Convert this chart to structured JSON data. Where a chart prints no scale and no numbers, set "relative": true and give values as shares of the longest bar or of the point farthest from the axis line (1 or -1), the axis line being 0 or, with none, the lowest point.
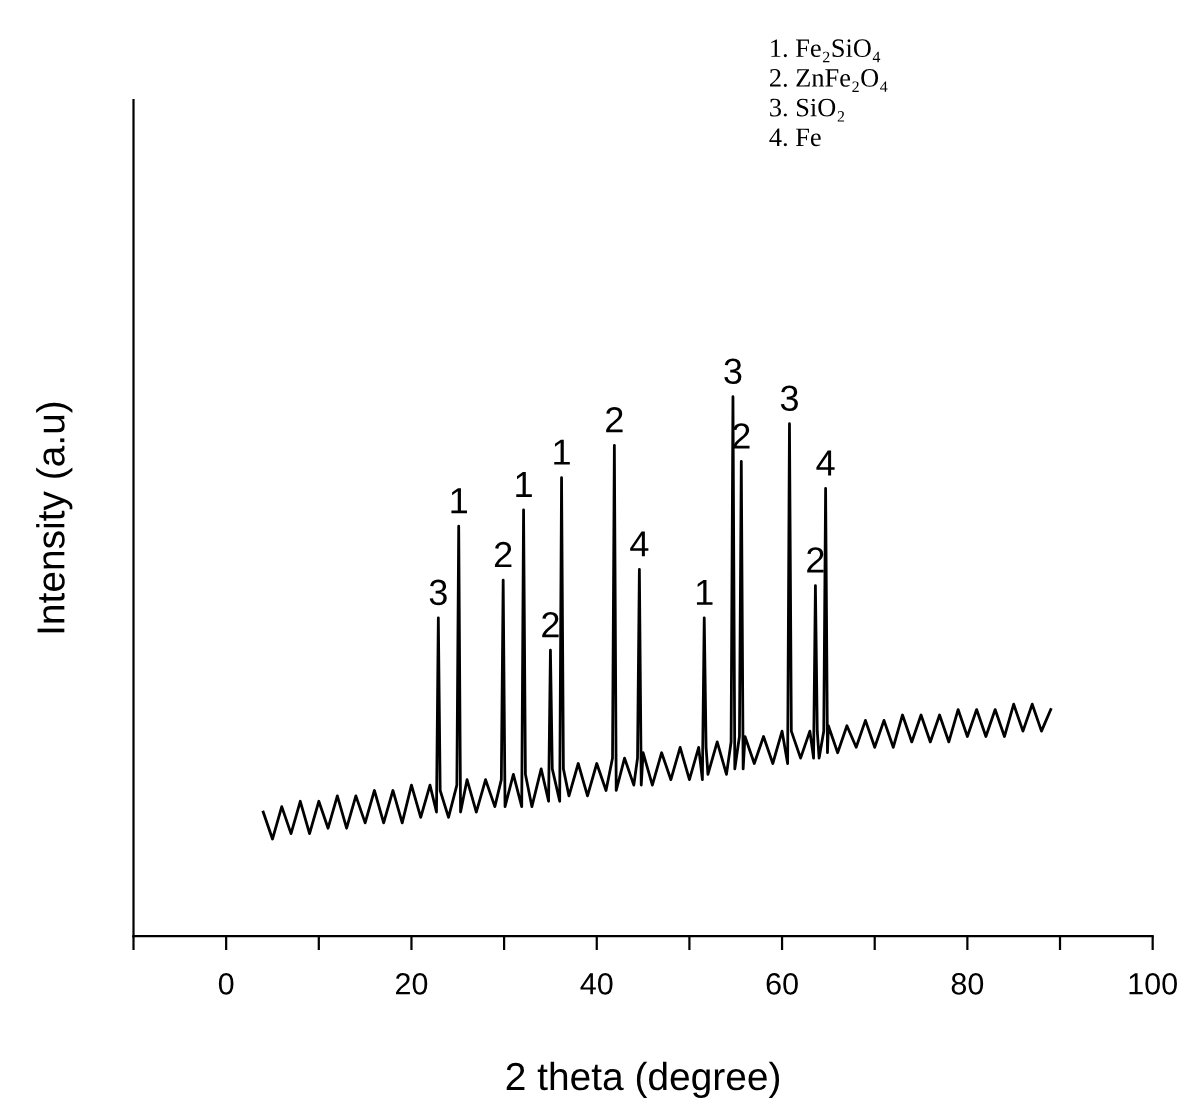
{
  "chart_data": {
    "type": "line",
    "xlabel": "2 theta (degree)",
    "ylabel": "Intensity (a.u)",
    "relative": true,
    "tick_labels": "x",
    "color": "#000000",
    "xlim": [
      -10,
      100
    ],
    "xticks": [
      {
        "value": -10,
        "label": null
      },
      0,
      {
        "value": 10,
        "label": null
      },
      20,
      {
        "value": 30,
        "label": null
      },
      40,
      {
        "value": 50,
        "label": null
      },
      60,
      {
        "value": 70,
        "label": null
      },
      80,
      {
        "value": 90,
        "label": null
      },
      100
    ],
    "x": [
      4,
      5,
      6,
      7,
      8,
      9,
      10,
      11,
      12,
      13,
      14,
      15,
      16,
      17,
      18,
      19,
      20,
      21,
      22,
      22.7,
      22.9,
      23.1,
      24,
      24.9,
      25.1,
      25.3,
      26,
      27,
      28,
      29,
      29.7,
      29.9,
      30.1,
      31,
      31.9,
      32.1,
      32.3,
      33,
      34,
      34.8,
      35.0,
      35.2,
      36.0,
      36.2,
      36.4,
      37,
      38,
      39,
      40,
      41,
      41.7,
      41.9,
      42.1,
      43,
      44,
      44.4,
      44.6,
      44.8,
      45,
      46,
      47,
      48,
      49,
      50,
      51,
      51.4,
      51.6,
      51.8,
      52,
      53,
      54,
      54.5,
      54.7,
      54.9,
      55.4,
      55.6,
      55.8,
      56,
      57,
      58,
      59,
      60,
      60.6,
      60.8,
      61.0,
      62,
      63,
      63.4,
      63.6,
      63.8,
      64,
      64.5,
      64.7,
      64.9,
      65,
      66,
      67,
      68,
      69,
      70,
      71,
      72,
      73,
      74,
      75,
      76,
      77,
      78,
      79,
      80,
      81,
      82,
      83,
      84,
      85,
      86,
      87,
      88,
      89
    ],
    "values": [
      0.23,
      0.18,
      0.24,
      0.19,
      0.25,
      0.19,
      0.25,
      0.2,
      0.26,
      0.2,
      0.26,
      0.21,
      0.27,
      0.21,
      0.27,
      0.21,
      0.28,
      0.22,
      0.28,
      0.23,
      0.59,
      0.27,
      0.22,
      0.28,
      0.76,
      0.23,
      0.29,
      0.23,
      0.29,
      0.24,
      0.29,
      0.66,
      0.24,
      0.3,
      0.24,
      0.79,
      0.3,
      0.24,
      0.31,
      0.25,
      0.53,
      0.31,
      0.25,
      0.85,
      0.31,
      0.26,
      0.32,
      0.26,
      0.32,
      0.27,
      0.33,
      0.91,
      0.27,
      0.33,
      0.28,
      0.33,
      0.68,
      0.28,
      0.34,
      0.28,
      0.34,
      0.29,
      0.35,
      0.29,
      0.35,
      0.29,
      0.59,
      0.35,
      0.3,
      0.36,
      0.3,
      0.36,
      1.0,
      0.31,
      0.37,
      0.88,
      0.31,
      0.37,
      0.32,
      0.37,
      0.32,
      0.38,
      0.32,
      0.95,
      0.38,
      0.33,
      0.38,
      0.33,
      0.65,
      0.38,
      0.33,
      0.38,
      0.83,
      0.34,
      0.39,
      0.34,
      0.39,
      0.35,
      0.4,
      0.35,
      0.4,
      0.35,
      0.41,
      0.36,
      0.41,
      0.36,
      0.41,
      0.36,
      0.42,
      0.37,
      0.42,
      0.37,
      0.42,
      0.37,
      0.43,
      0.38,
      0.43,
      0.38,
      0.42
    ],
    "annotations": [
      {
        "text": "3",
        "x": 22.9,
        "y": 0.59
      },
      {
        "text": "1",
        "x": 25.1,
        "y": 0.76
      },
      {
        "text": "2",
        "x": 29.9,
        "y": 0.66
      },
      {
        "text": "1",
        "x": 32.1,
        "y": 0.79
      },
      {
        "text": "2",
        "x": 35.0,
        "y": 0.53
      },
      {
        "text": "1",
        "x": 36.2,
        "y": 0.85
      },
      {
        "text": "2",
        "x": 41.9,
        "y": 0.91
      },
      {
        "text": "4",
        "x": 44.6,
        "y": 0.68
      },
      {
        "text": "1",
        "x": 51.6,
        "y": 0.59
      },
      {
        "text": "3",
        "x": 54.7,
        "y": 1.0
      },
      {
        "text": "2",
        "x": 55.6,
        "y": 0.88
      },
      {
        "text": "3",
        "x": 60.8,
        "y": 0.95
      },
      {
        "text": "2",
        "x": 63.6,
        "y": 0.65
      },
      {
        "text": "4",
        "x": 64.7,
        "y": 0.83
      },
      "1. Fe₂SiO₄",
      "2. ZnFe₂O₄",
      "3. SiO₂",
      "4. Fe"
    ]
  }
}
